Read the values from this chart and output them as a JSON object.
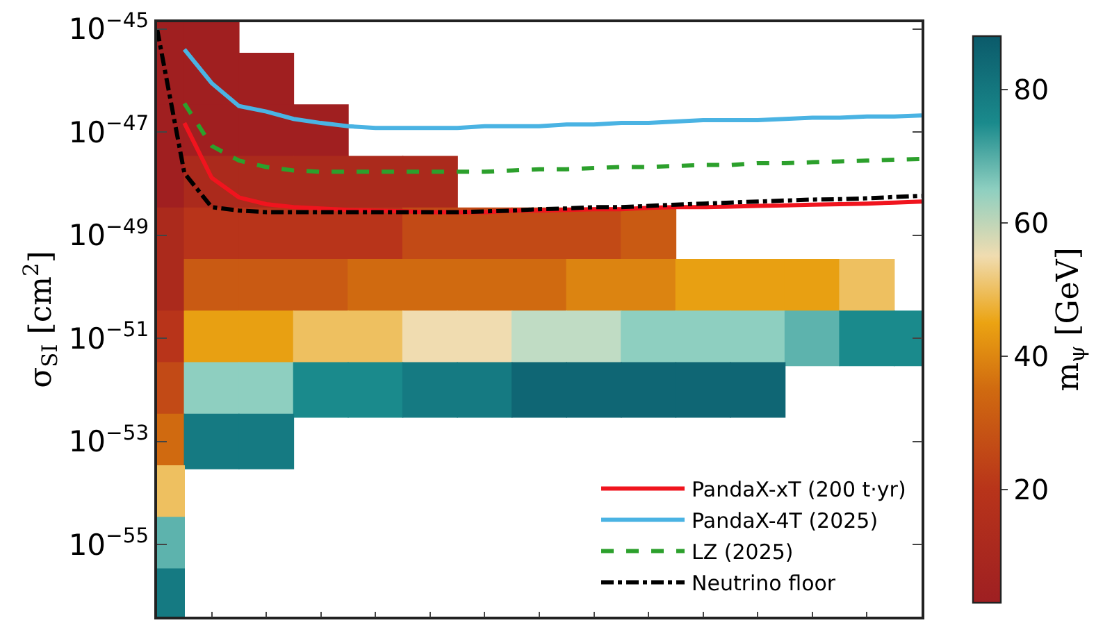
{
  "chart_data": {
    "type": "line",
    "categories": [
      null,
      null,
      null,
      null,
      null,
      null,
      null,
      null,
      null,
      null,
      null,
      null,
      null,
      null,
      null,
      null,
      null,
      null,
      null,
      null,
      null,
      null,
      null,
      null,
      null,
      null,
      null,
      null,
      null
    ],
    "ylabel": "σ$_{SI}$ [cm$^{2}$]",
    "clabel": "m$_{ψ}$ [GeV]",
    "clim": [
      3,
      88
    ],
    "cticks": [
      20,
      40,
      60,
      80
    ],
    "log": "y",
    "ylim": [
      4e-57,
      1.35e-45
    ],
    "yticks": [
      {
        "value": 1e-45,
        "label": "10$^{−45}$"
      },
      {
        "value": 1e-47,
        "label": "10$^{−47}$"
      },
      {
        "value": 1e-49,
        "label": "10$^{−49}$"
      },
      {
        "value": 1e-51,
        "label": "10$^{−51}$"
      },
      {
        "value": 1e-53,
        "label": "10$^{−53}$"
      },
      {
        "value": 1e-55,
        "label": "10$^{−55}$"
      }
    ],
    "tick_labels": "y",
    "legend": "bottom right",
    "series": [
      {
        "type": "scatter",
        "marker": "square",
        "values": [
          1e-45,
          null,
          1e-45,
          null,
          null,
          null,
          null,
          null,
          null,
          null,
          null,
          null,
          null,
          null,
          null,
          null,
          null,
          null,
          null,
          null,
          null,
          null,
          null,
          null,
          null,
          null,
          null,
          null,
          null
        ],
        "colors": [
          "#a01f20",
          null,
          "#a01f20",
          null,
          null,
          null,
          null,
          null,
          null,
          null,
          null,
          null,
          null,
          null,
          null,
          null,
          null,
          null,
          null,
          null,
          null,
          null,
          null,
          null,
          null,
          null,
          null,
          null,
          null
        ]
      },
      {
        "type": "scatter",
        "marker": "square",
        "values": [
          1e-46,
          null,
          1e-46,
          null,
          1e-46,
          null,
          null,
          null,
          null,
          null,
          null,
          null,
          null,
          null,
          null,
          null,
          null,
          null,
          null,
          null,
          null,
          null,
          null,
          null,
          null,
          null,
          null,
          null,
          null
        ],
        "colors": [
          "#a01f20",
          null,
          "#a01f20",
          null,
          "#a01f20",
          null,
          null,
          null,
          null,
          null,
          null,
          null,
          null,
          null,
          null,
          null,
          null,
          null,
          null,
          null,
          null,
          null,
          null,
          null,
          null,
          null,
          null,
          null,
          null
        ]
      },
      {
        "type": "scatter",
        "marker": "square",
        "values": [
          1e-47,
          null,
          1e-47,
          null,
          1e-47,
          null,
          1e-47,
          null,
          null,
          null,
          null,
          null,
          null,
          null,
          null,
          null,
          null,
          null,
          null,
          null,
          null,
          null,
          null,
          null,
          null,
          null,
          null,
          null,
          null
        ],
        "colors": [
          "#a01f20",
          null,
          "#a01f20",
          null,
          "#a01f20",
          null,
          "#a01f20",
          null,
          null,
          null,
          null,
          null,
          null,
          null,
          null,
          null,
          null,
          null,
          null,
          null,
          null,
          null,
          null,
          null,
          null,
          null,
          null,
          null,
          null
        ]
      },
      {
        "type": "scatter",
        "marker": "square",
        "values": [
          1e-48,
          null,
          1e-48,
          null,
          1e-48,
          null,
          1e-48,
          null,
          1e-48,
          null,
          1e-48,
          null,
          null,
          null,
          null,
          null,
          null,
          null,
          null,
          null,
          null,
          null,
          null,
          null,
          null,
          null,
          null,
          null,
          null
        ],
        "colors": [
          "#a01f20",
          null,
          "#ab2a1c",
          null,
          "#ab2a1c",
          null,
          "#ab2a1c",
          null,
          "#ab2a1c",
          null,
          "#ab2a1c",
          null,
          null,
          null,
          null,
          null,
          null,
          null,
          null,
          null,
          null,
          null,
          null,
          null,
          null,
          null,
          null,
          null,
          null
        ]
      },
      {
        "type": "scatter",
        "marker": "square",
        "values": [
          1e-49,
          null,
          1e-49,
          null,
          1e-49,
          null,
          1e-49,
          null,
          1e-49,
          null,
          1e-49,
          null,
          1e-49,
          null,
          1e-49,
          null,
          1e-49,
          null,
          1e-49,
          null,
          null,
          null,
          null,
          null,
          null,
          null,
          null,
          null,
          null
        ],
        "colors": [
          "#ab2a1c",
          null,
          "#b8341a",
          null,
          "#b8341a",
          null,
          "#b8341a",
          null,
          "#b8341a",
          null,
          "#c24a16",
          null,
          "#c24a16",
          null,
          "#c24a16",
          null,
          "#c24a16",
          null,
          "#c95a13",
          null,
          null,
          null,
          null,
          null,
          null,
          null,
          null,
          null,
          null
        ]
      },
      {
        "type": "scatter",
        "marker": "square",
        "values": [
          1e-50,
          null,
          1e-50,
          null,
          1e-50,
          null,
          1e-50,
          null,
          1e-50,
          null,
          1e-50,
          null,
          1e-50,
          null,
          1e-50,
          null,
          1e-50,
          null,
          1e-50,
          null,
          1e-50,
          null,
          1e-50,
          null,
          1e-50,
          null,
          1e-50,
          null,
          null
        ],
        "colors": [
          "#ab2a1c",
          null,
          "#c95a13",
          null,
          "#c95a13",
          null,
          "#c95a13",
          null,
          "#d06a10",
          null,
          "#d06a10",
          null,
          "#d06a10",
          null,
          "#d06a10",
          null,
          "#dc8411",
          null,
          "#dc8411",
          null,
          "#e8a012",
          null,
          "#e8a012",
          null,
          "#e8a012",
          null,
          "#eec060",
          null,
          null
        ]
      },
      {
        "type": "scatter",
        "marker": "square",
        "values": [
          1e-51,
          null,
          1e-51,
          null,
          1e-51,
          null,
          1e-51,
          null,
          1e-51,
          null,
          1e-51,
          null,
          1e-51,
          null,
          1e-51,
          null,
          1e-51,
          null,
          1e-51,
          null,
          1e-51,
          null,
          1e-51,
          null,
          1e-51,
          null,
          1e-51,
          null,
          1e-51
        ],
        "colors": [
          "#b8341a",
          null,
          "#e8a012",
          null,
          "#e8a012",
          null,
          "#eec060",
          null,
          "#eec060",
          null,
          "#f0dcb0",
          null,
          "#f0dcb0",
          null,
          "#c0dcc4",
          null,
          "#c0dcc4",
          null,
          "#8ecfc0",
          null,
          "#8ecfc0",
          null,
          "#8ecfc0",
          null,
          "#5db3ad",
          null,
          "#1a8a8c",
          null,
          "#1a8a8c"
        ]
      },
      {
        "type": "scatter",
        "marker": "square",
        "values": [
          1e-52,
          null,
          1e-52,
          null,
          1e-52,
          null,
          1e-52,
          null,
          1e-52,
          null,
          1e-52,
          null,
          1e-52,
          null,
          1e-52,
          null,
          1e-52,
          null,
          1e-52,
          null,
          1e-52,
          null,
          1e-52,
          null,
          null,
          null,
          null,
          null,
          null
        ],
        "colors": [
          "#c24a16",
          null,
          "#8ecfc0",
          null,
          "#8ecfc0",
          null,
          "#1a8a8c",
          null,
          "#1a8a8c",
          null,
          "#157a82",
          null,
          "#157a82",
          null,
          "#0f6674",
          null,
          "#0f6674",
          null,
          "#0f6674",
          null,
          "#0f6674",
          null,
          "#0f6674",
          null,
          null,
          null,
          null,
          null,
          null
        ]
      },
      {
        "type": "scatter",
        "marker": "square",
        "values": [
          1e-53,
          null,
          1e-53,
          null,
          1e-53,
          null,
          null,
          null,
          null,
          null,
          null,
          null,
          null,
          null,
          null,
          null,
          null,
          null,
          null,
          null,
          null,
          null,
          null,
          null,
          null,
          null,
          null,
          null,
          null
        ],
        "colors": [
          "#d06a10",
          null,
          "#157a82",
          null,
          "#157a82",
          null,
          null,
          null,
          null,
          null,
          null,
          null,
          null,
          null,
          null,
          null,
          null,
          null,
          null,
          null,
          null,
          null,
          null,
          null,
          null,
          null,
          null,
          null,
          null
        ]
      },
      {
        "type": "scatter",
        "marker": "square",
        "values": [
          1e-54,
          null,
          null,
          null,
          null,
          null,
          null,
          null,
          null,
          null,
          null,
          null,
          null,
          null,
          null,
          null,
          null,
          null,
          null,
          null,
          null,
          null,
          null,
          null,
          null,
          null,
          null,
          null,
          null
        ],
        "colors": [
          "#eec060",
          null,
          null,
          null,
          null,
          null,
          null,
          null,
          null,
          null,
          null,
          null,
          null,
          null,
          null,
          null,
          null,
          null,
          null,
          null,
          null,
          null,
          null,
          null,
          null,
          null,
          null,
          null,
          null
        ]
      },
      {
        "type": "scatter",
        "marker": "square",
        "values": [
          1e-55,
          null,
          null,
          null,
          null,
          null,
          null,
          null,
          null,
          null,
          null,
          null,
          null,
          null,
          null,
          null,
          null,
          null,
          null,
          null,
          null,
          null,
          null,
          null,
          null,
          null,
          null,
          null,
          null
        ],
        "colors": [
          "#5db3ad",
          null,
          null,
          null,
          null,
          null,
          null,
          null,
          null,
          null,
          null,
          null,
          null,
          null,
          null,
          null,
          null,
          null,
          null,
          null,
          null,
          null,
          null,
          null,
          null,
          null,
          null,
          null,
          null
        ]
      },
      {
        "type": "scatter",
        "marker": "square",
        "values": [
          1e-56,
          null,
          null,
          null,
          null,
          null,
          null,
          null,
          null,
          null,
          null,
          null,
          null,
          null,
          null,
          null,
          null,
          null,
          null,
          null,
          null,
          null,
          null,
          null,
          null,
          null,
          null,
          null,
          null
        ],
        "colors": [
          "#157a82",
          null,
          null,
          null,
          null,
          null,
          null,
          null,
          null,
          null,
          null,
          null,
          null,
          null,
          null,
          null,
          null,
          null,
          null,
          null,
          null,
          null,
          null,
          null,
          null,
          null,
          null,
          null,
          null
        ]
      },
      {
        "name": "PandaX-xT (200 t·yr)",
        "color": "#f0141e",
        "line_style": "solid",
        "values": [
          null,
          1.5e-47,
          1.3e-48,
          5.4e-49,
          4e-49,
          3.5e-49,
          3.3e-49,
          3.1e-49,
          3e-49,
          2.9e-49,
          2.8e-49,
          2.8e-49,
          2.8e-49,
          3e-49,
          3e-49,
          3.1e-49,
          3.2e-49,
          3.2e-49,
          3.4e-49,
          3.5e-49,
          3.5e-49,
          3.6e-49,
          3.7e-49,
          3.8e-49,
          3.9e-49,
          4e-49,
          4.1e-49,
          4.3e-49,
          4.5e-49
        ]
      },
      {
        "name": "PandaX-4T (2025)",
        "color": "#4ab3e3",
        "line_style": "solid",
        "values": [
          null,
          4e-46,
          8.9e-47,
          3.2e-47,
          2.5e-47,
          1.8e-47,
          1.5e-47,
          1.3e-47,
          1.2e-47,
          1.2e-47,
          1.2e-47,
          1.2e-47,
          1.3e-47,
          1.3e-47,
          1.3e-47,
          1.4e-47,
          1.4e-47,
          1.5e-47,
          1.5e-47,
          1.6e-47,
          1.7e-47,
          1.7e-47,
          1.7e-47,
          1.8e-47,
          1.9e-47,
          1.9e-47,
          2e-47,
          2e-47,
          2.1e-47
        ]
      },
      {
        "name": "LZ (2025)",
        "color": "#2ca02c",
        "line_style": "dashed",
        "values": [
          null,
          3.6e-47,
          5.4e-48,
          2.8e-48,
          2.1e-48,
          1.8e-48,
          1.7e-48,
          1.7e-48,
          1.7e-48,
          1.7e-48,
          1.7e-48,
          1.7e-48,
          1.7e-48,
          1.8e-48,
          1.9e-48,
          1.9e-48,
          2e-48,
          2.1e-48,
          2.1e-48,
          2.2e-48,
          2.3e-48,
          2.3e-48,
          2.5e-48,
          2.5e-48,
          2.6e-48,
          2.7e-48,
          2.8e-48,
          2.9e-48,
          3e-48
        ]
      },
      {
        "name": "Neutrino floor",
        "color": "#000000",
        "line_style": "dashdot",
        "values": [
          1e-45,
          1.6e-48,
          3.5e-49,
          3e-49,
          2.8e-49,
          2.8e-49,
          2.8e-49,
          2.8e-49,
          2.8e-49,
          2.8e-49,
          2.8e-49,
          2.8e-49,
          2.9e-49,
          3e-49,
          3.2e-49,
          3.3e-49,
          3.5e-49,
          3.5e-49,
          3.7e-49,
          3.9e-49,
          4.1e-49,
          4.3e-49,
          4.5e-49,
          4.7e-49,
          4.9e-49,
          5e-49,
          5.2e-49,
          5.5e-49,
          5.8e-49
        ]
      }
    ]
  }
}
